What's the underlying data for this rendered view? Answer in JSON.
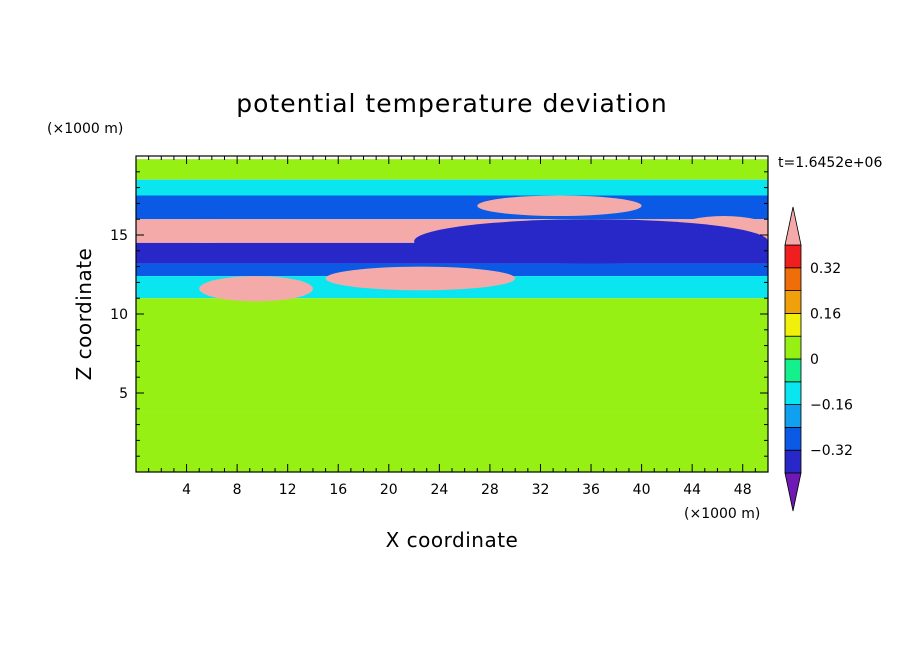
{
  "chart_data": {
    "type": "heatmap",
    "title": "potential temperature deviation",
    "xlabel": "X coordinate",
    "ylabel": "Z coordinate",
    "x_unit": "(×1000 m)",
    "y_unit": "(×1000 m)",
    "annotation": "t=1.6452e+06",
    "xlim": [
      0,
      50
    ],
    "ylim": [
      0,
      20
    ],
    "x_ticks": [
      "4",
      "8",
      "12",
      "16",
      "20",
      "24",
      "28",
      "32",
      "36",
      "40",
      "44",
      "48"
    ],
    "y_ticks": [
      "5",
      "10",
      "15"
    ],
    "colorbar": {
      "tick_labels": [
        "0.32",
        "0.16",
        "0",
        "−0.16",
        "−0.32"
      ],
      "levels": [
        -0.4,
        -0.32,
        -0.24,
        -0.16,
        -0.08,
        0,
        0.08,
        0.16,
        0.24,
        0.32,
        0.4
      ],
      "colors": [
        "#6e19b4",
        "#2828c8",
        "#0a5ae6",
        "#0fa0f0",
        "#0ae6f0",
        "#14f08c",
        "#96f014",
        "#f0f00a",
        "#f0a00a",
        "#f06e0a",
        "#f01e1e",
        "#f5aaaa"
      ],
      "extend": "both"
    },
    "field": {
      "description_free": true,
      "layers": [
        {
          "z": [
            18.5,
            19.8
          ],
          "value": 0.04
        },
        {
          "z": [
            17.5,
            18.5
          ],
          "value": -0.1
        },
        {
          "z": [
            16.0,
            17.5
          ],
          "value": -0.3
        },
        {
          "z": [
            14.5,
            16.0
          ],
          "value": 0.45
        },
        {
          "z": [
            13.2,
            14.5
          ],
          "value": -0.38
        },
        {
          "z": [
            12.4,
            13.2
          ],
          "value": -0.28
        },
        {
          "z": [
            11.0,
            12.4
          ],
          "value": -0.14
        },
        {
          "z": [
            3.8,
            11.0
          ],
          "value": 0.06
        },
        {
          "z": [
            0,
            3.8
          ],
          "value": 0.0
        }
      ],
      "features": [
        {
          "x": [
            1,
            10
          ],
          "z": [
            14.5,
            16.0
          ],
          "value": 0.45
        },
        {
          "x": [
            27,
            40
          ],
          "z": [
            16.2,
            17.5
          ],
          "value": 0.45
        },
        {
          "x": [
            43,
            50
          ],
          "z": [
            14.8,
            16.2
          ],
          "value": 0.45
        },
        {
          "x": [
            15,
            30
          ],
          "z": [
            11.5,
            13.0
          ],
          "value": 0.45
        },
        {
          "x": [
            5,
            14
          ],
          "z": [
            10.8,
            12.4
          ],
          "value": 0.45
        },
        {
          "x": [
            22,
            50
          ],
          "z": [
            13.2,
            16.0
          ],
          "value": -0.38
        }
      ]
    },
    "grid": false
  }
}
